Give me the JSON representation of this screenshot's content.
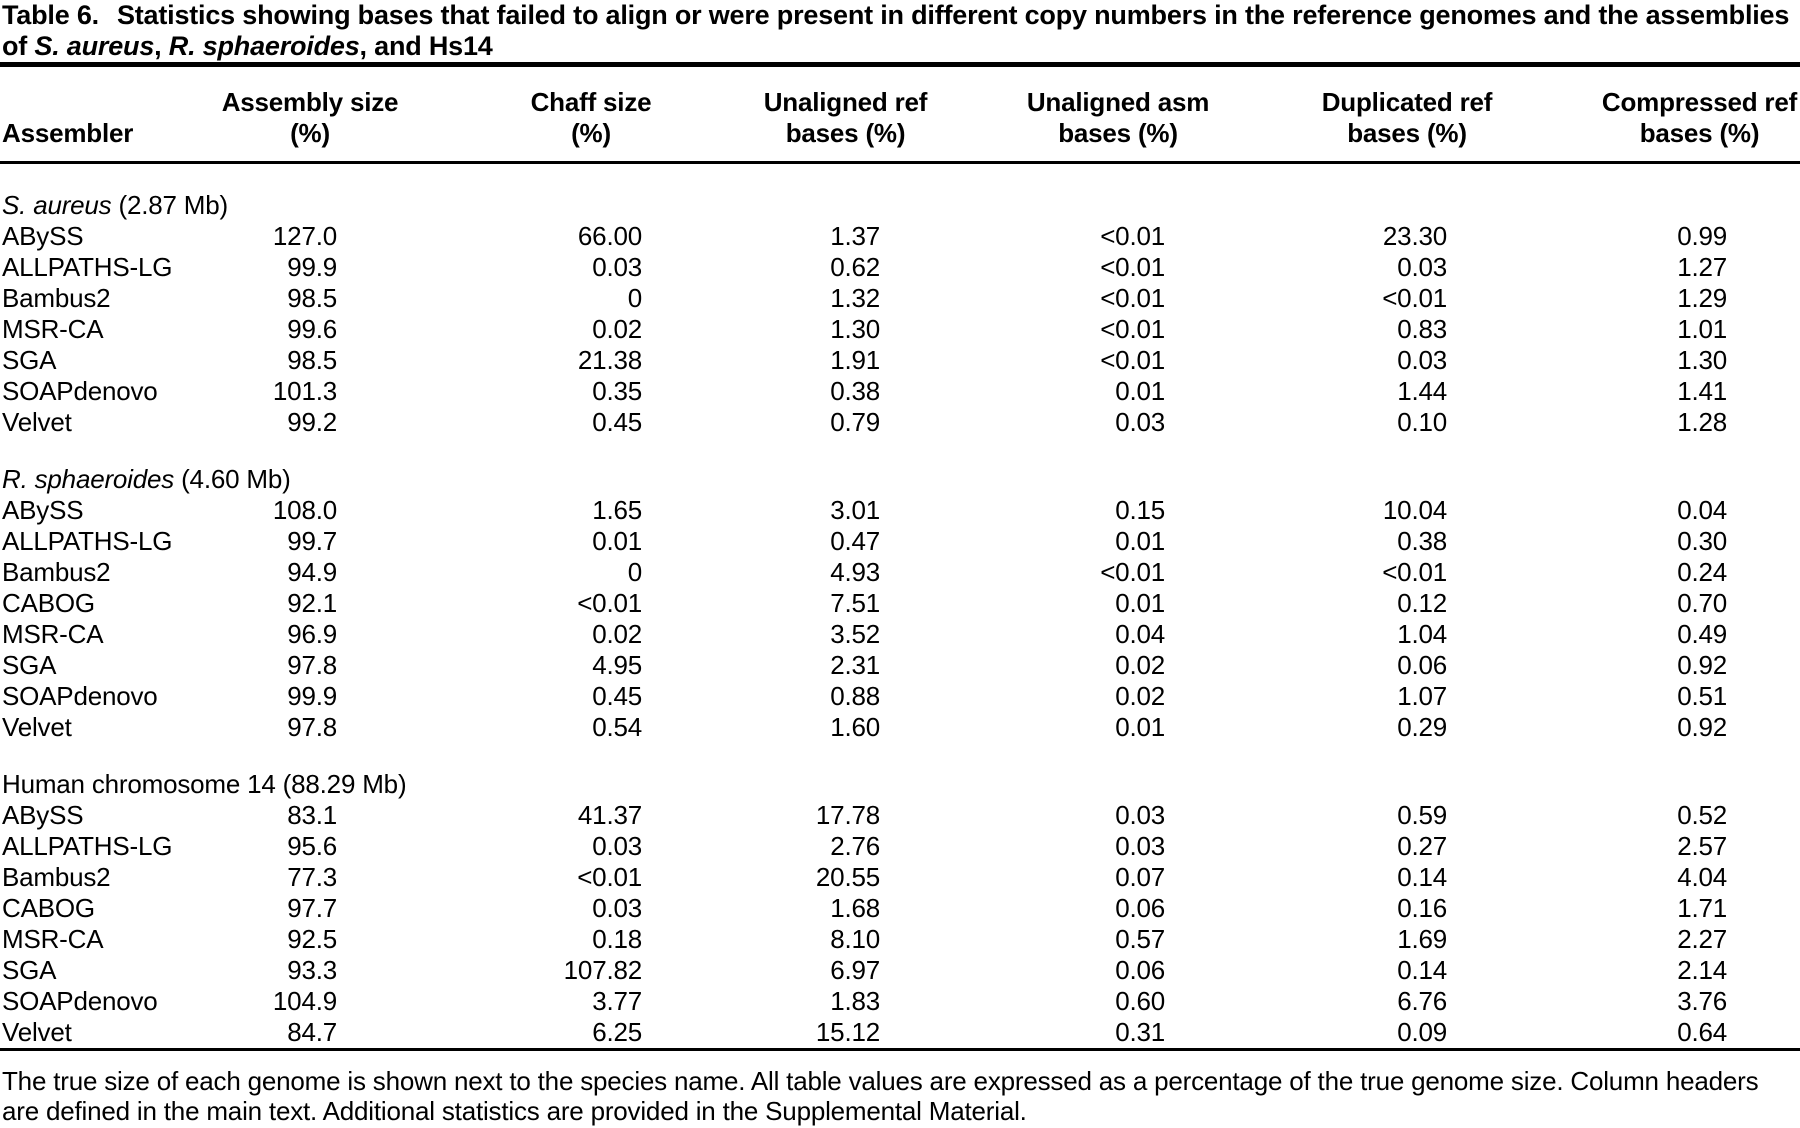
{
  "title": {
    "label": "Table 6.",
    "caption_part1": "Statistics showing bases that failed to align or were present in different copy numbers in the reference genomes and the assemblies of ",
    "species1": "S. aureus",
    "sep1": ", ",
    "species2": "R. sphaeroides",
    "caption_part2": ", and Hs14"
  },
  "columns": [
    {
      "line1": "Assembler",
      "line2": ""
    },
    {
      "line1": "Assembly size",
      "line2": "(%)"
    },
    {
      "line1": "Chaff size",
      "line2": "(%)"
    },
    {
      "line1": "Unaligned ref",
      "line2": "bases (%)"
    },
    {
      "line1": "Unaligned asm",
      "line2": "bases (%)"
    },
    {
      "line1": "Duplicated ref",
      "line2": "bases (%)"
    },
    {
      "line1": "Compressed ref",
      "line2": "bases (%)"
    }
  ],
  "sections": [
    {
      "label_italic": "S. aureus",
      "label_rest": " (2.87 Mb)",
      "rows": [
        [
          "ABySS",
          "127.0",
          "66.00",
          "1.37",
          "<0.01",
          "23.30",
          "0.99"
        ],
        [
          "ALLPATHS-LG",
          "99.9",
          "0.03",
          "0.62",
          "<0.01",
          "0.03",
          "1.27"
        ],
        [
          "Bambus2",
          "98.5",
          "0",
          "1.32",
          "<0.01",
          "<0.01",
          "1.29"
        ],
        [
          "MSR-CA",
          "99.6",
          "0.02",
          "1.30",
          "<0.01",
          "0.83",
          "1.01"
        ],
        [
          "SGA",
          "98.5",
          "21.38",
          "1.91",
          "<0.01",
          "0.03",
          "1.30"
        ],
        [
          "SOAPdenovo",
          "101.3",
          "0.35",
          "0.38",
          "0.01",
          "1.44",
          "1.41"
        ],
        [
          "Velvet",
          "99.2",
          "0.45",
          "0.79",
          "0.03",
          "0.10",
          "1.28"
        ]
      ]
    },
    {
      "label_italic": "R. sphaeroides",
      "label_rest": " (4.60 Mb)",
      "rows": [
        [
          "ABySS",
          "108.0",
          "1.65",
          "3.01",
          "0.15",
          "10.04",
          "0.04"
        ],
        [
          "ALLPATHS-LG",
          "99.7",
          "0.01",
          "0.47",
          "0.01",
          "0.38",
          "0.30"
        ],
        [
          "Bambus2",
          "94.9",
          "0",
          "4.93",
          "<0.01",
          "<0.01",
          "0.24"
        ],
        [
          "CABOG",
          "92.1",
          "<0.01",
          "7.51",
          "0.01",
          "0.12",
          "0.70"
        ],
        [
          "MSR-CA",
          "96.9",
          "0.02",
          "3.52",
          "0.04",
          "1.04",
          "0.49"
        ],
        [
          "SGA",
          "97.8",
          "4.95",
          "2.31",
          "0.02",
          "0.06",
          "0.92"
        ],
        [
          "SOAPdenovo",
          "99.9",
          "0.45",
          "0.88",
          "0.02",
          "1.07",
          "0.51"
        ],
        [
          "Velvet",
          "97.8",
          "0.54",
          "1.60",
          "0.01",
          "0.29",
          "0.92"
        ]
      ]
    },
    {
      "label_italic": "",
      "label_rest": "Human chromosome 14 (88.29 Mb)",
      "rows": [
        [
          "ABySS",
          "83.1",
          "41.37",
          "17.78",
          "0.03",
          "0.59",
          "0.52"
        ],
        [
          "ALLPATHS-LG",
          "95.6",
          "0.03",
          "2.76",
          "0.03",
          "0.27",
          "2.57"
        ],
        [
          "Bambus2",
          "77.3",
          "<0.01",
          "20.55",
          "0.07",
          "0.14",
          "4.04"
        ],
        [
          "CABOG",
          "97.7",
          "0.03",
          "1.68",
          "0.06",
          "0.16",
          "1.71"
        ],
        [
          "MSR-CA",
          "92.5",
          "0.18",
          "8.10",
          "0.57",
          "1.69",
          "2.27"
        ],
        [
          "SGA",
          "93.3",
          "107.82",
          "6.97",
          "0.06",
          "0.14",
          "2.14"
        ],
        [
          "SOAPdenovo",
          "104.9",
          "3.77",
          "1.83",
          "0.60",
          "6.76",
          "3.76"
        ],
        [
          "Velvet",
          "84.7",
          "6.25",
          "15.12",
          "0.31",
          "0.09",
          "0.64"
        ]
      ]
    }
  ],
  "footnote": "The true size of each genome is shown next to the species name. All table values are expressed as a percentage of the true genome size. Column headers are defined in the main text. Additional statistics are provided in the Supplemental Material."
}
